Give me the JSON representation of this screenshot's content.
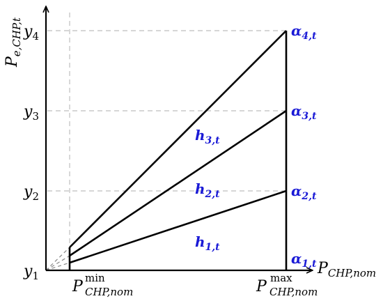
{
  "axes": {
    "y_label_main": "P",
    "y_label_sub": "e,CHP,t",
    "x_label_main": "P",
    "x_label_sub": "CHP,nom"
  },
  "y_ticks": [
    {
      "main": "y",
      "sub": "4"
    },
    {
      "main": "y",
      "sub": "3"
    },
    {
      "main": "y",
      "sub": "2"
    },
    {
      "main": "y",
      "sub": "1"
    }
  ],
  "x_ticks": {
    "min": {
      "main": "P",
      "sup": "min",
      "sub": "CHP,nom"
    },
    "max": {
      "main": "P",
      "sup": "max",
      "sub": "CHP,nom"
    }
  },
  "alpha_labels": [
    {
      "main": "α",
      "sub": "4,t"
    },
    {
      "main": "α",
      "sub": "3,t"
    },
    {
      "main": "α",
      "sub": "2,t"
    },
    {
      "main": "α",
      "sub": "1,t"
    }
  ],
  "h_labels": [
    {
      "main": "h",
      "sub": "3,t"
    },
    {
      "main": "h",
      "sub": "2,t"
    },
    {
      "main": "h",
      "sub": "1,t"
    }
  ],
  "colors": {
    "label_blue": "#1a1ad6",
    "grid": "#bdbdbd",
    "lines": "#000000"
  }
}
